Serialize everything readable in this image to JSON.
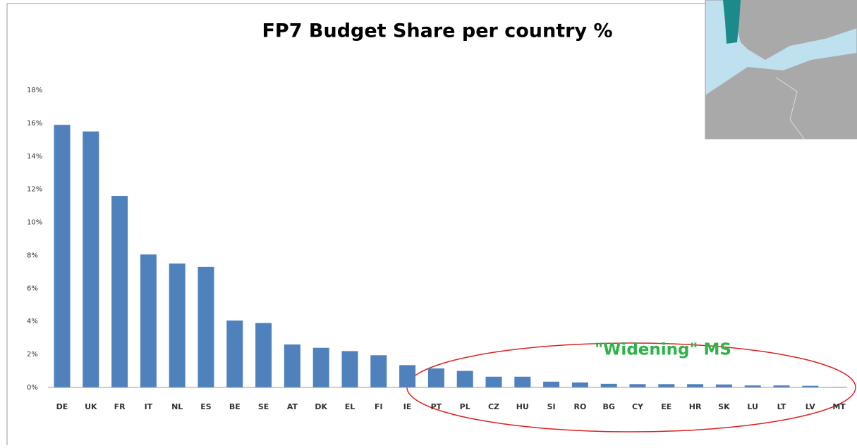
{
  "chart_data": {
    "type": "bar",
    "title": "FP7 Budget Share per country %",
    "categories": [
      "DE",
      "UK",
      "FR",
      "IT",
      "NL",
      "ES",
      "BE",
      "SE",
      "AT",
      "DK",
      "EL",
      "FI",
      "IE",
      "PT",
      "PL",
      "CZ",
      "HU",
      "SI",
      "RO",
      "BG",
      "CY",
      "EE",
      "HR",
      "SK",
      "LU",
      "LT",
      "LV",
      "MT"
    ],
    "values": [
      15.9,
      15.5,
      11.6,
      8.05,
      7.5,
      7.3,
      4.05,
      3.9,
      2.6,
      2.4,
      2.2,
      1.95,
      1.35,
      1.15,
      1.0,
      0.65,
      0.65,
      0.35,
      0.3,
      0.22,
      0.2,
      0.2,
      0.2,
      0.18,
      0.12,
      0.12,
      0.1,
      0.03
    ],
    "color": "#4f81bd",
    "ylim": [
      0,
      18
    ],
    "yticks": [
      {
        "value": 0,
        "label": "0%"
      },
      {
        "value": 2,
        "label": "2%"
      },
      {
        "value": 4,
        "label": "4%"
      },
      {
        "value": 6,
        "label": "6%"
      },
      {
        "value": 8,
        "label": "8%"
      },
      {
        "value": 10,
        "label": "10%"
      },
      {
        "value": 12,
        "label": "12%"
      },
      {
        "value": 14,
        "label": "14%"
      },
      {
        "value": 16,
        "label": "16%"
      },
      {
        "value": 18,
        "label": "18%"
      }
    ],
    "grid": false,
    "annotation": "\"Widening\" MS"
  }
}
